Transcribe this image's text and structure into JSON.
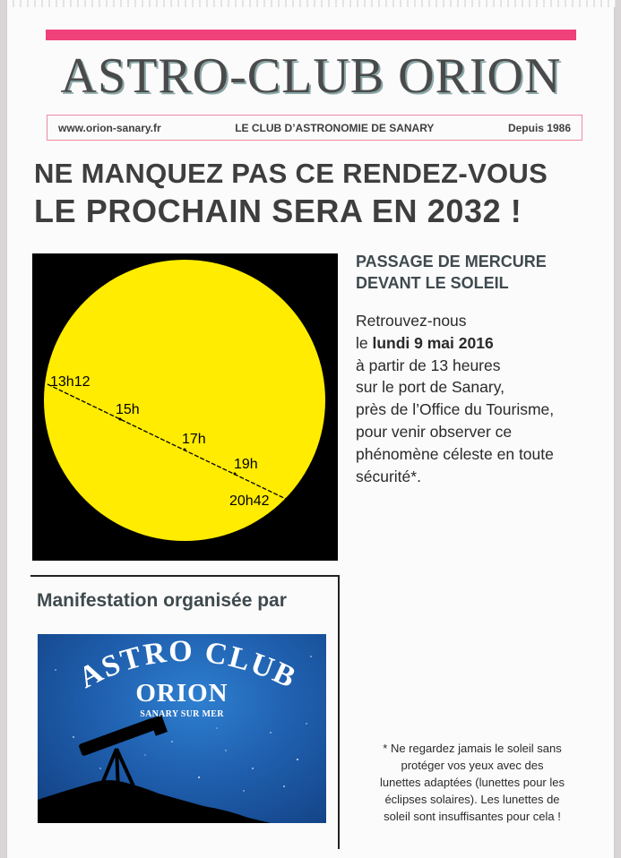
{
  "masthead": {
    "title": "ASTRO-CLUB ORION",
    "website": "www.orion-sanary.fr",
    "tagline": "LE CLUB D’ASTRONOMIE DE SANARY",
    "since": "Depuis 1986"
  },
  "headline": {
    "line1": "NE MANQUEZ PAS CE RENDEZ-VOUS",
    "line2": "LE PROCHAIN  SERA EN 2032 !"
  },
  "transit_diagram": {
    "labels": [
      "13h12",
      "15h",
      "17h",
      "19h",
      "20h42"
    ],
    "colors": {
      "background": "#000000",
      "sun": "#ffec00",
      "path": "#000000"
    }
  },
  "info": {
    "title_line1": "PASSAGE DE MERCURE",
    "title_line2": "DEVANT LE SOLEIL",
    "line1": "Retrouvez-nous",
    "line2_prefix": "le ",
    "line2_bold": "lundi 9 mai 2016",
    "line3": "à partir de  13 heures",
    "line4": "sur le port de Sanary,",
    "line5": "près de l’Office du Tourisme,",
    "line6": "pour venir observer ce",
    "line7": "phénomène céleste en toute",
    "line8": "sécurité*."
  },
  "organizer": {
    "title": "Manifestation organisée par",
    "logo_arc": "ASTRO CLUB",
    "logo_name": "ORION",
    "logo_sub": "SANARY SUR MER"
  },
  "note": {
    "line1": "* Ne regardez jamais le soleil sans",
    "line2": "protéger vos yeux avec des",
    "line3": "lunettes adaptées (lunettes pour les",
    "line4": "éclipses solaires). Les lunettes de",
    "line5": "soleil sont insuffisantes pour cela !"
  },
  "colors": {
    "accent": "#f0427a",
    "heading": "#3e3e3e",
    "logo_blue": "#1f5fae"
  }
}
